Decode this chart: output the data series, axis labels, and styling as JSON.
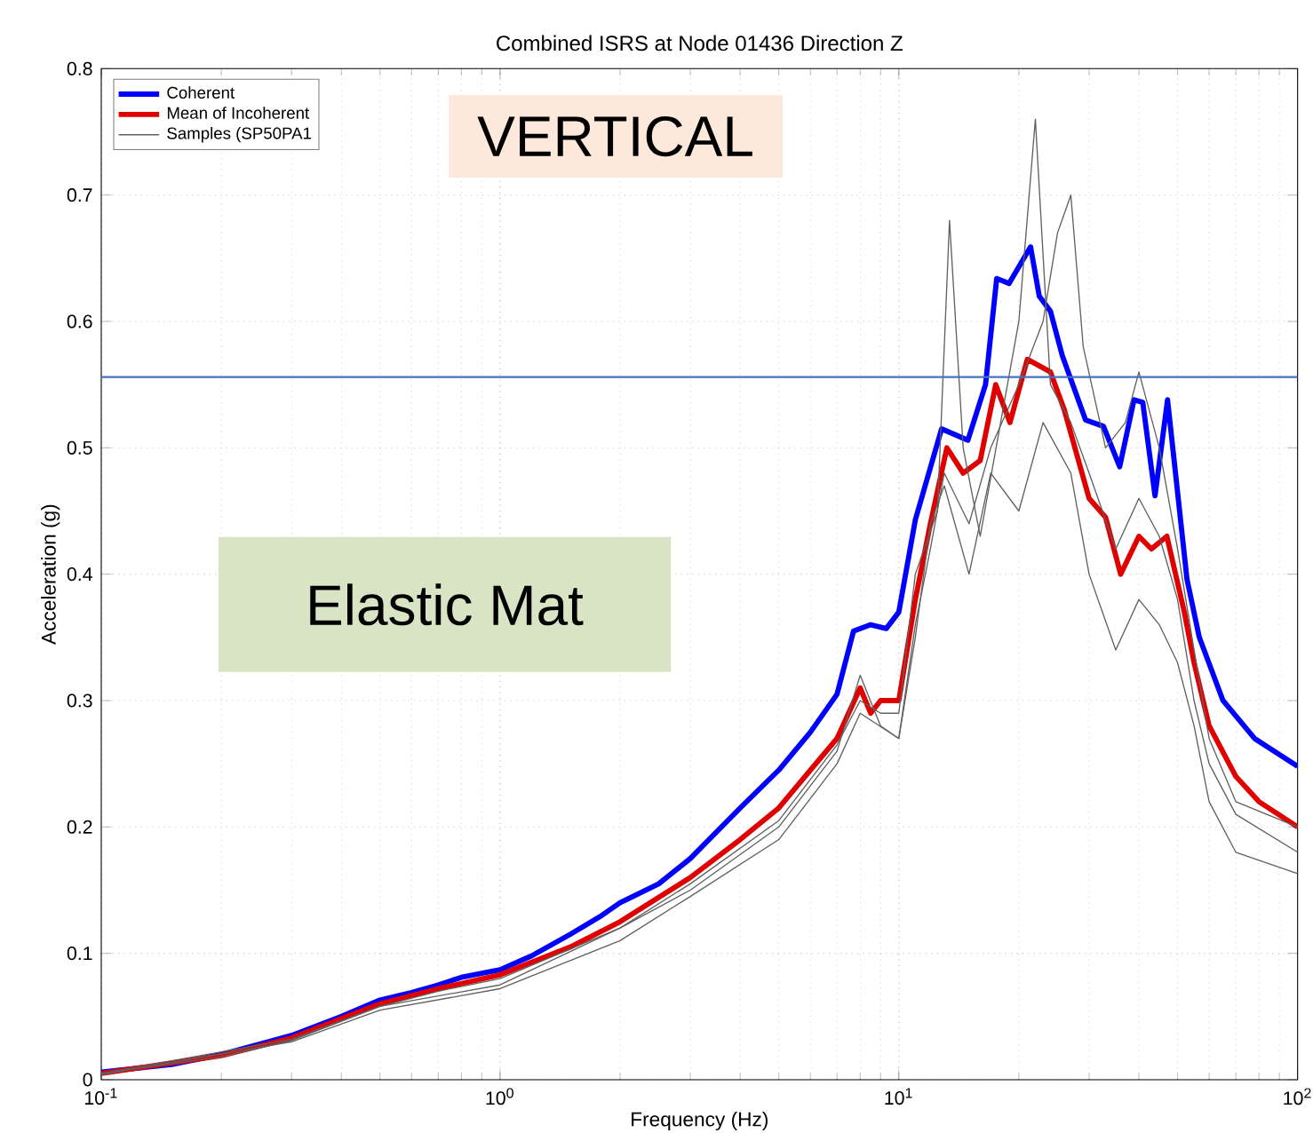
{
  "chart_data": {
    "type": "line",
    "title": "Combined ISRS at Node 01436 Direction Z",
    "xlabel": "Frequency (Hz)",
    "ylabel": "Acceleration (g)",
    "annotations": [
      "VERTICAL",
      "Elastic Mat"
    ],
    "log": "x",
    "grid": true,
    "legend": "top left",
    "xlim": [
      0.1,
      100
    ],
    "ylim": [
      0,
      0.8
    ],
    "xticks": [
      {
        "value": 0.1,
        "label": "10$^{-1}$"
      },
      {
        "value": 1,
        "label": "10$^{0}$"
      },
      {
        "value": 10,
        "label": "10$^{1}$"
      },
      {
        "value": 100,
        "label": "10$^{2}$"
      }
    ],
    "yticks": [
      0,
      0.1,
      0.2,
      0.3,
      0.4,
      0.5,
      0.6,
      0.7,
      0.8
    ],
    "ref_lines": [
      {
        "axis": "y",
        "value": 0.556,
        "color": "#4472c4"
      }
    ],
    "series": [
      {
        "name": "Coherent",
        "color": "#0000ff",
        "x": [
          0.1,
          0.15,
          0.2,
          0.3,
          0.4,
          0.5,
          0.6,
          0.7,
          0.8,
          1.0,
          1.2,
          1.5,
          1.8,
          2,
          2.5,
          3,
          4,
          5,
          6,
          7,
          7.7,
          8.5,
          9.3,
          10,
          11,
          12.8,
          14.9,
          16.5,
          17.6,
          18.9,
          21.4,
          22.5,
          24,
          25.7,
          29.4,
          32.6,
          35.8,
          38.9,
          40.9,
          43.9,
          47.2,
          52.8,
          56.7,
          65,
          78,
          100
        ],
        "values": [
          0.006,
          0.012,
          0.02,
          0.035,
          0.05,
          0.063,
          0.069,
          0.075,
          0.081,
          0.087,
          0.098,
          0.115,
          0.13,
          0.14,
          0.155,
          0.175,
          0.215,
          0.245,
          0.275,
          0.305,
          0.355,
          0.36,
          0.357,
          0.37,
          0.443,
          0.515,
          0.506,
          0.55,
          0.634,
          0.63,
          0.659,
          0.62,
          0.608,
          0.573,
          0.522,
          0.517,
          0.485,
          0.538,
          0.536,
          0.462,
          0.538,
          0.396,
          0.35,
          0.3,
          0.27,
          0.248
        ]
      },
      {
        "name": "Mean of Incoherent",
        "color": "#e00000",
        "x": [
          0.1,
          0.2,
          0.3,
          0.5,
          0.7,
          1,
          1.5,
          2,
          3,
          4,
          5,
          6,
          7,
          8,
          8.5,
          9,
          10,
          11,
          12,
          13.2,
          14.5,
          16,
          17.5,
          19,
          21,
          24,
          26,
          30,
          33,
          36,
          40,
          43,
          47,
          52,
          55,
          60,
          70,
          80,
          100
        ],
        "values": [
          0.005,
          0.019,
          0.033,
          0.06,
          0.072,
          0.083,
          0.105,
          0.125,
          0.16,
          0.19,
          0.215,
          0.245,
          0.27,
          0.31,
          0.29,
          0.3,
          0.3,
          0.38,
          0.44,
          0.5,
          0.48,
          0.49,
          0.55,
          0.52,
          0.57,
          0.56,
          0.53,
          0.46,
          0.445,
          0.4,
          0.43,
          0.42,
          0.43,
          0.37,
          0.33,
          0.28,
          0.24,
          0.22,
          0.2
        ]
      },
      {
        "name": "Samples (SP50PA1",
        "color": "#606060",
        "x": [
          0.1,
          0.2,
          0.3,
          0.5,
          0.7,
          1,
          2,
          3,
          5,
          7,
          8,
          9,
          10,
          11,
          12.5,
          13.4,
          14.5,
          16,
          18,
          20,
          22,
          24,
          27,
          30,
          35,
          40,
          45,
          50,
          55,
          60,
          70,
          100
        ],
        "values": [
          0.005,
          0.018,
          0.031,
          0.058,
          0.07,
          0.08,
          0.12,
          0.155,
          0.205,
          0.265,
          0.3,
          0.29,
          0.29,
          0.4,
          0.45,
          0.68,
          0.5,
          0.43,
          0.52,
          0.6,
          0.76,
          0.55,
          0.52,
          0.48,
          0.42,
          0.46,
          0.43,
          0.38,
          0.3,
          0.25,
          0.21,
          0.18
        ]
      },
      {
        "color": "#606060",
        "x": [
          0.1,
          0.3,
          0.5,
          1,
          2,
          3,
          5,
          7,
          8,
          9,
          10,
          11,
          12,
          13,
          15,
          17,
          20,
          23,
          25,
          27,
          29,
          33,
          37,
          40,
          45,
          50,
          55,
          60,
          70,
          100
        ],
        "values": [
          0.005,
          0.032,
          0.058,
          0.075,
          0.12,
          0.15,
          0.2,
          0.26,
          0.32,
          0.28,
          0.27,
          0.36,
          0.42,
          0.48,
          0.44,
          0.5,
          0.55,
          0.6,
          0.67,
          0.7,
          0.58,
          0.5,
          0.52,
          0.56,
          0.5,
          0.42,
          0.34,
          0.27,
          0.22,
          0.2
        ]
      },
      {
        "color": "#606060",
        "x": [
          0.1,
          0.3,
          0.5,
          1,
          2,
          3,
          5,
          7,
          8,
          10,
          11,
          12,
          13,
          15,
          17,
          20,
          23,
          27,
          30,
          35,
          40,
          45,
          50,
          55,
          60,
          70,
          100
        ],
        "values": [
          0.004,
          0.03,
          0.055,
          0.072,
          0.11,
          0.145,
          0.19,
          0.25,
          0.29,
          0.27,
          0.35,
          0.44,
          0.47,
          0.4,
          0.48,
          0.45,
          0.52,
          0.48,
          0.4,
          0.34,
          0.38,
          0.36,
          0.33,
          0.28,
          0.22,
          0.18,
          0.163
        ]
      }
    ]
  }
}
